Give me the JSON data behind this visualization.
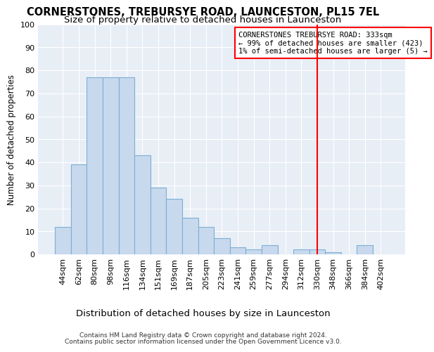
{
  "title": "CORNERSTONES, TREBURSYE ROAD, LAUNCESTON, PL15 7EL",
  "subtitle": "Size of property relative to detached houses in Launceston",
  "xlabel": "Distribution of detached houses by size in Launceston",
  "ylabel": "Number of detached properties",
  "bar_color": "#c8d9ed",
  "bar_edge_color": "#7bafd4",
  "background_color": "#e8eef6",
  "grid_color": "#ffffff",
  "fig_bg_color": "#ffffff",
  "categories": [
    "44sqm",
    "62sqm",
    "80sqm",
    "98sqm",
    "116sqm",
    "134sqm",
    "151sqm",
    "169sqm",
    "187sqm",
    "205sqm",
    "223sqm",
    "241sqm",
    "259sqm",
    "277sqm",
    "294sqm",
    "312sqm",
    "330sqm",
    "348sqm",
    "366sqm",
    "384sqm",
    "402sqm"
  ],
  "values": [
    12,
    39,
    77,
    77,
    77,
    43,
    29,
    24,
    16,
    12,
    7,
    3,
    2,
    4,
    0,
    2,
    2,
    1,
    0,
    4,
    0
  ],
  "red_line_index": 16,
  "annotation_title": "CORNERSTONES TREBURSYE ROAD: 333sqm",
  "annotation_line1": "← 99% of detached houses are smaller (423)",
  "annotation_line2": "1% of semi-detached houses are larger (5) →",
  "footer_line1": "Contains HM Land Registry data © Crown copyright and database right 2024.",
  "footer_line2": "Contains public sector information licensed under the Open Government Licence v3.0.",
  "ylim": [
    0,
    100
  ],
  "title_fontsize": 10.5,
  "subtitle_fontsize": 9.5,
  "xlabel_fontsize": 9.5,
  "ylabel_fontsize": 8.5,
  "tick_fontsize": 8,
  "annotation_fontsize": 7.5,
  "footer_fontsize": 6.5
}
